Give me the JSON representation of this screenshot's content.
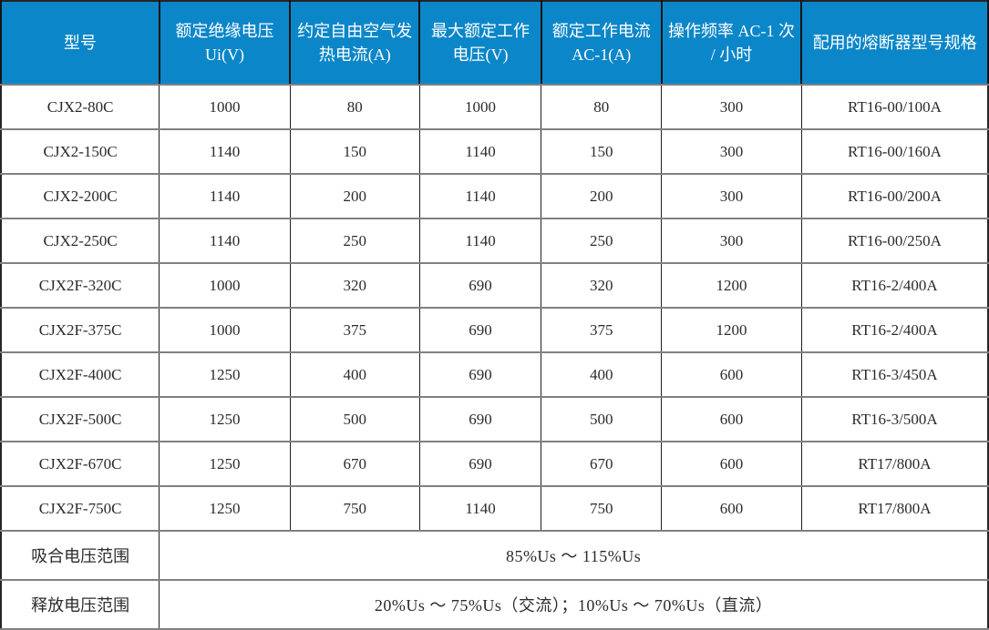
{
  "table": {
    "headers": [
      "型号",
      "额定绝缘电压 Ui(V)",
      "约定自由空气发热电流(A)",
      "最大额定工作电压(V)",
      "额定工作电流 AC-1(A)",
      "操作频率 AC-1 次 / 小时",
      "配用的熔断器型号规格"
    ],
    "rows": [
      [
        "CJX2-80C",
        "1000",
        "80",
        "1000",
        "80",
        "300",
        "RT16-00/100A"
      ],
      [
        "CJX2-150C",
        "1140",
        "150",
        "1140",
        "150",
        "300",
        "RT16-00/160A"
      ],
      [
        "CJX2-200C",
        "1140",
        "200",
        "1140",
        "200",
        "300",
        "RT16-00/200A"
      ],
      [
        "CJX2-250C",
        "1140",
        "250",
        "1140",
        "250",
        "300",
        "RT16-00/250A"
      ],
      [
        "CJX2F-320C",
        "1000",
        "320",
        "690",
        "320",
        "1200",
        "RT16-2/400A"
      ],
      [
        "CJX2F-375C",
        "1000",
        "375",
        "690",
        "375",
        "1200",
        "RT16-2/400A"
      ],
      [
        "CJX2F-400C",
        "1250",
        "400",
        "690",
        "400",
        "600",
        "RT16-3/450A"
      ],
      [
        "CJX2F-500C",
        "1250",
        "500",
        "690",
        "500",
        "600",
        "RT16-3/500A"
      ],
      [
        "CJX2F-670C",
        "1250",
        "670",
        "690",
        "670",
        "600",
        "RT17/800A"
      ],
      [
        "CJX2F-750C",
        "1250",
        "750",
        "1140",
        "750",
        "600",
        "RT17/800A"
      ]
    ],
    "footer_rows": [
      {
        "label": "吸合电压范围",
        "value": "85%Us ～ 115%Us"
      },
      {
        "label": "释放电压范围",
        "value": "20%Us ～ 75%Us（交流）；10%Us ～ 70%Us（直流）"
      }
    ],
    "colors": {
      "header_bg": "#0b86c8",
      "header_text": "#ffffff",
      "body_text": "#2b2b2b",
      "grid_horizontal": "#808080",
      "grid_vertical": "#1f1f1f",
      "outer_border": "#262626"
    }
  }
}
